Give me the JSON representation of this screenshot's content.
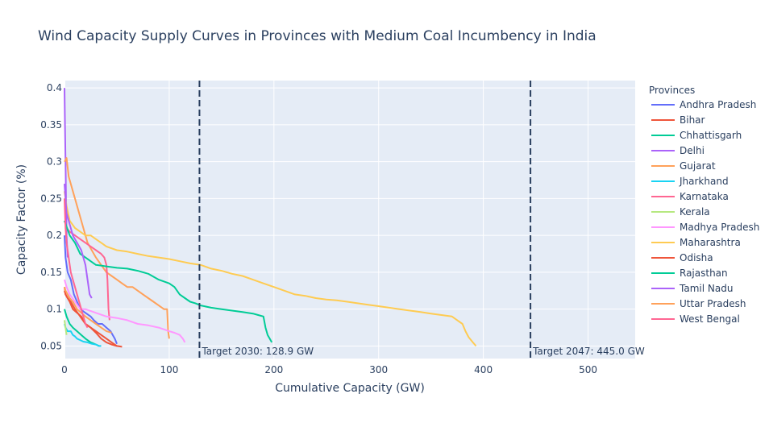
{
  "chart_data": {
    "type": "line",
    "title": "Wind Capacity Supply Curves in Provinces with Medium Coal Incumbency in India",
    "xlabel": "Cumulative Capacity (GW)",
    "ylabel": "Capacity Factor (%)",
    "xlim": [
      0,
      545
    ],
    "ylim": [
      0.033,
      0.41
    ],
    "x_ticks": [
      0,
      100,
      200,
      300,
      400,
      500
    ],
    "y_ticks": [
      0.05,
      0.1,
      0.15,
      0.2,
      0.25,
      0.3,
      0.35,
      0.4
    ],
    "grid": true,
    "legend": {
      "title": "Provinces",
      "placement": "right"
    },
    "annotations": [
      {
        "x": 128.9,
        "text": "Target 2030: 128.9 GW"
      },
      {
        "x": 445.0,
        "text": "Target 2047: 445.0 GW"
      }
    ],
    "series": [
      {
        "name": "Andhra Pradesh",
        "color": "#636efa",
        "x": [
          0,
          1,
          3,
          6,
          9,
          12,
          15,
          20,
          25,
          28,
          32,
          36,
          40,
          44,
          46,
          48,
          50
        ],
        "y": [
          0.2,
          0.17,
          0.15,
          0.14,
          0.12,
          0.11,
          0.1,
          0.095,
          0.09,
          0.085,
          0.08,
          0.08,
          0.075,
          0.07,
          0.065,
          0.06,
          0.053
        ]
      },
      {
        "name": "Bihar",
        "color": "#EF553B",
        "x": [
          0,
          1,
          3,
          5,
          8,
          12,
          16,
          20,
          25,
          30,
          35,
          40,
          45,
          50,
          55
        ],
        "y": [
          0.13,
          0.12,
          0.115,
          0.11,
          0.1,
          0.095,
          0.09,
          0.08,
          0.075,
          0.068,
          0.06,
          0.055,
          0.052,
          0.05,
          0.049
        ]
      },
      {
        "name": "Chhattisgarh",
        "color": "#00cc96",
        "x": [
          0,
          2,
          5,
          8,
          12,
          16,
          20,
          25,
          30,
          33
        ],
        "y": [
          0.1,
          0.09,
          0.08,
          0.075,
          0.07,
          0.065,
          0.06,
          0.055,
          0.052,
          0.05
        ]
      },
      {
        "name": "Delhi",
        "color": "#ab63fa",
        "x": [
          0,
          0.5,
          1,
          1.5,
          2,
          3
        ],
        "y": [
          0.4,
          0.35,
          0.3,
          0.25,
          0.2,
          0.17
        ]
      },
      {
        "name": "Gujarat",
        "color": "#FFA15A",
        "x": [
          0,
          2,
          4,
          6,
          8,
          10,
          14,
          18,
          20,
          22,
          26,
          30,
          35,
          40,
          45,
          50,
          55,
          60,
          65,
          70,
          75,
          80,
          85,
          90,
          95,
          98,
          99,
          100
        ],
        "y": [
          0.3,
          0.305,
          0.28,
          0.27,
          0.26,
          0.25,
          0.23,
          0.21,
          0.2,
          0.19,
          0.18,
          0.17,
          0.16,
          0.15,
          0.145,
          0.14,
          0.135,
          0.13,
          0.13,
          0.125,
          0.12,
          0.115,
          0.11,
          0.105,
          0.1,
          0.1,
          0.07,
          0.06
        ]
      },
      {
        "name": "Jharkhand",
        "color": "#19d3f3",
        "x": [
          0,
          1,
          3,
          6,
          8,
          10,
          12,
          15,
          18,
          22,
          26,
          30,
          33,
          35
        ],
        "y": [
          0.08,
          0.075,
          0.07,
          0.07,
          0.065,
          0.063,
          0.06,
          0.058,
          0.056,
          0.055,
          0.053,
          0.052,
          0.05,
          0.05
        ]
      },
      {
        "name": "Karnataka",
        "color": "#FF6692",
        "x": [
          0,
          2,
          5,
          10,
          15,
          20,
          25,
          30,
          35,
          38,
          40,
          41,
          42,
          43
        ],
        "y": [
          0.22,
          0.21,
          0.205,
          0.2,
          0.195,
          0.19,
          0.185,
          0.18,
          0.175,
          0.17,
          0.16,
          0.14,
          0.1,
          0.085
        ]
      },
      {
        "name": "Kerala",
        "color": "#B6E880",
        "x": [
          0,
          0.5,
          1,
          1.5,
          2
        ],
        "y": [
          0.085,
          0.08,
          0.075,
          0.07,
          0.065
        ]
      },
      {
        "name": "Madhya Pradesh",
        "color": "#FF97FF",
        "x": [
          0,
          2,
          5,
          10,
          15,
          20,
          30,
          40,
          50,
          60,
          70,
          80,
          90,
          100,
          105,
          110,
          113,
          115
        ],
        "y": [
          0.14,
          0.13,
          0.12,
          0.11,
          0.1,
          0.1,
          0.095,
          0.09,
          0.088,
          0.085,
          0.08,
          0.078,
          0.075,
          0.07,
          0.068,
          0.065,
          0.06,
          0.055
        ]
      },
      {
        "name": "Maharashtra",
        "color": "#FECB52",
        "x": [
          0,
          2,
          5,
          10,
          15,
          20,
          25,
          30,
          35,
          40,
          50,
          60,
          70,
          80,
          90,
          100,
          110,
          120,
          130,
          140,
          150,
          160,
          170,
          180,
          190,
          200,
          210,
          220,
          230,
          240,
          250,
          260,
          270,
          280,
          290,
          300,
          310,
          320,
          330,
          340,
          350,
          360,
          370,
          375,
          380,
          383,
          386,
          390,
          393
        ],
        "y": [
          0.26,
          0.24,
          0.22,
          0.21,
          0.205,
          0.2,
          0.2,
          0.195,
          0.19,
          0.185,
          0.18,
          0.178,
          0.175,
          0.172,
          0.17,
          0.168,
          0.165,
          0.162,
          0.16,
          0.155,
          0.152,
          0.148,
          0.145,
          0.14,
          0.135,
          0.13,
          0.125,
          0.12,
          0.118,
          0.115,
          0.113,
          0.112,
          0.11,
          0.108,
          0.106,
          0.104,
          0.102,
          0.1,
          0.098,
          0.096,
          0.094,
          0.092,
          0.09,
          0.085,
          0.08,
          0.07,
          0.062,
          0.055,
          0.05
        ]
      },
      {
        "name": "Odisha",
        "color": "#EF553B",
        "x": [
          0,
          1,
          3,
          6,
          10,
          15,
          20,
          25,
          30,
          35,
          40,
          45,
          50
        ],
        "y": [
          0.125,
          0.12,
          0.115,
          0.11,
          0.1,
          0.09,
          0.08,
          0.075,
          0.07,
          0.065,
          0.06,
          0.055,
          0.05
        ]
      },
      {
        "name": "Rajasthan",
        "color": "#00cc96",
        "x": [
          0,
          5,
          10,
          15,
          20,
          25,
          30,
          40,
          50,
          60,
          70,
          80,
          90,
          100,
          105,
          110,
          115,
          120,
          125,
          130,
          140,
          150,
          160,
          170,
          180,
          185,
          190,
          192,
          194,
          196,
          198
        ],
        "y": [
          0.22,
          0.2,
          0.19,
          0.175,
          0.17,
          0.165,
          0.16,
          0.158,
          0.156,
          0.155,
          0.152,
          0.148,
          0.14,
          0.135,
          0.13,
          0.12,
          0.115,
          0.11,
          0.108,
          0.105,
          0.102,
          0.1,
          0.098,
          0.096,
          0.094,
          0.092,
          0.09,
          0.075,
          0.065,
          0.06,
          0.055
        ]
      },
      {
        "name": "Tamil Nadu",
        "color": "#ab63fa",
        "x": [
          0,
          1,
          2,
          4,
          6,
          8,
          10,
          12,
          14,
          16,
          18,
          20,
          22,
          24,
          26
        ],
        "y": [
          0.27,
          0.25,
          0.23,
          0.22,
          0.21,
          0.2,
          0.195,
          0.19,
          0.185,
          0.18,
          0.17,
          0.16,
          0.14,
          0.12,
          0.115
        ]
      },
      {
        "name": "Uttar Pradesh",
        "color": "#FFA15A",
        "x": [
          0,
          1,
          3,
          5,
          8,
          12,
          16,
          20,
          25,
          30,
          35,
          40,
          45
        ],
        "y": [
          0.13,
          0.125,
          0.12,
          0.115,
          0.11,
          0.1,
          0.095,
          0.09,
          0.085,
          0.08,
          0.075,
          0.07,
          0.068
        ]
      },
      {
        "name": "West Bengal",
        "color": "#FF6692",
        "x": [
          0,
          1,
          2,
          4,
          6,
          8,
          10,
          12,
          14,
          16,
          18,
          20,
          22
        ],
        "y": [
          0.25,
          0.21,
          0.19,
          0.17,
          0.15,
          0.14,
          0.13,
          0.12,
          0.11,
          0.1,
          0.09,
          0.08,
          0.075
        ]
      }
    ]
  }
}
